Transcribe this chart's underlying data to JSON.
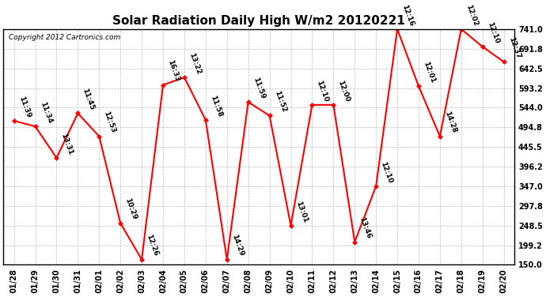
{
  "title": "Solar Radiation Daily High W/m2 20120221",
  "copyright": "Copyright 2012 Cartronics.com",
  "dates": [
    "01/28",
    "01/29",
    "01/30",
    "01/31",
    "02/01",
    "02/02",
    "02/03",
    "02/04",
    "02/05",
    "02/06",
    "02/07",
    "02/08",
    "02/09",
    "02/10",
    "02/11",
    "02/12",
    "02/13",
    "02/14",
    "02/15",
    "02/16",
    "02/17",
    "02/18",
    "02/19",
    "02/20"
  ],
  "values": [
    511,
    497,
    418,
    530,
    472,
    254,
    163,
    601,
    620,
    513,
    163,
    558,
    524,
    248,
    551,
    551,
    207,
    347,
    741,
    598,
    472,
    741,
    697,
    659
  ],
  "times": [
    "11:39",
    "11:34",
    "13:31",
    "11:45",
    "12:53",
    "10:29",
    "12:26",
    "16:33",
    "13:22",
    "11:58",
    "14:29",
    "11:59",
    "11:52",
    "13:01",
    "12:10",
    "12:00",
    "13:46",
    "12:10",
    "12:16",
    "12:01",
    "14:28",
    "12:02",
    "12:10",
    "12:37"
  ],
  "ylim_min": 150.0,
  "ylim_max": 741.0,
  "yticks": [
    150.0,
    199.2,
    248.5,
    297.8,
    347.0,
    396.2,
    445.5,
    494.8,
    544.0,
    593.2,
    642.5,
    691.8,
    741.0
  ],
  "line_color": "#ff0000",
  "marker_color": "#ff0000",
  "bg_color": "#ffffff",
  "grid_color": "#bbbbbb",
  "title_fontsize": 11,
  "annotation_fontsize": 6.5,
  "copyright_fontsize": 6.5,
  "tick_fontsize": 7
}
